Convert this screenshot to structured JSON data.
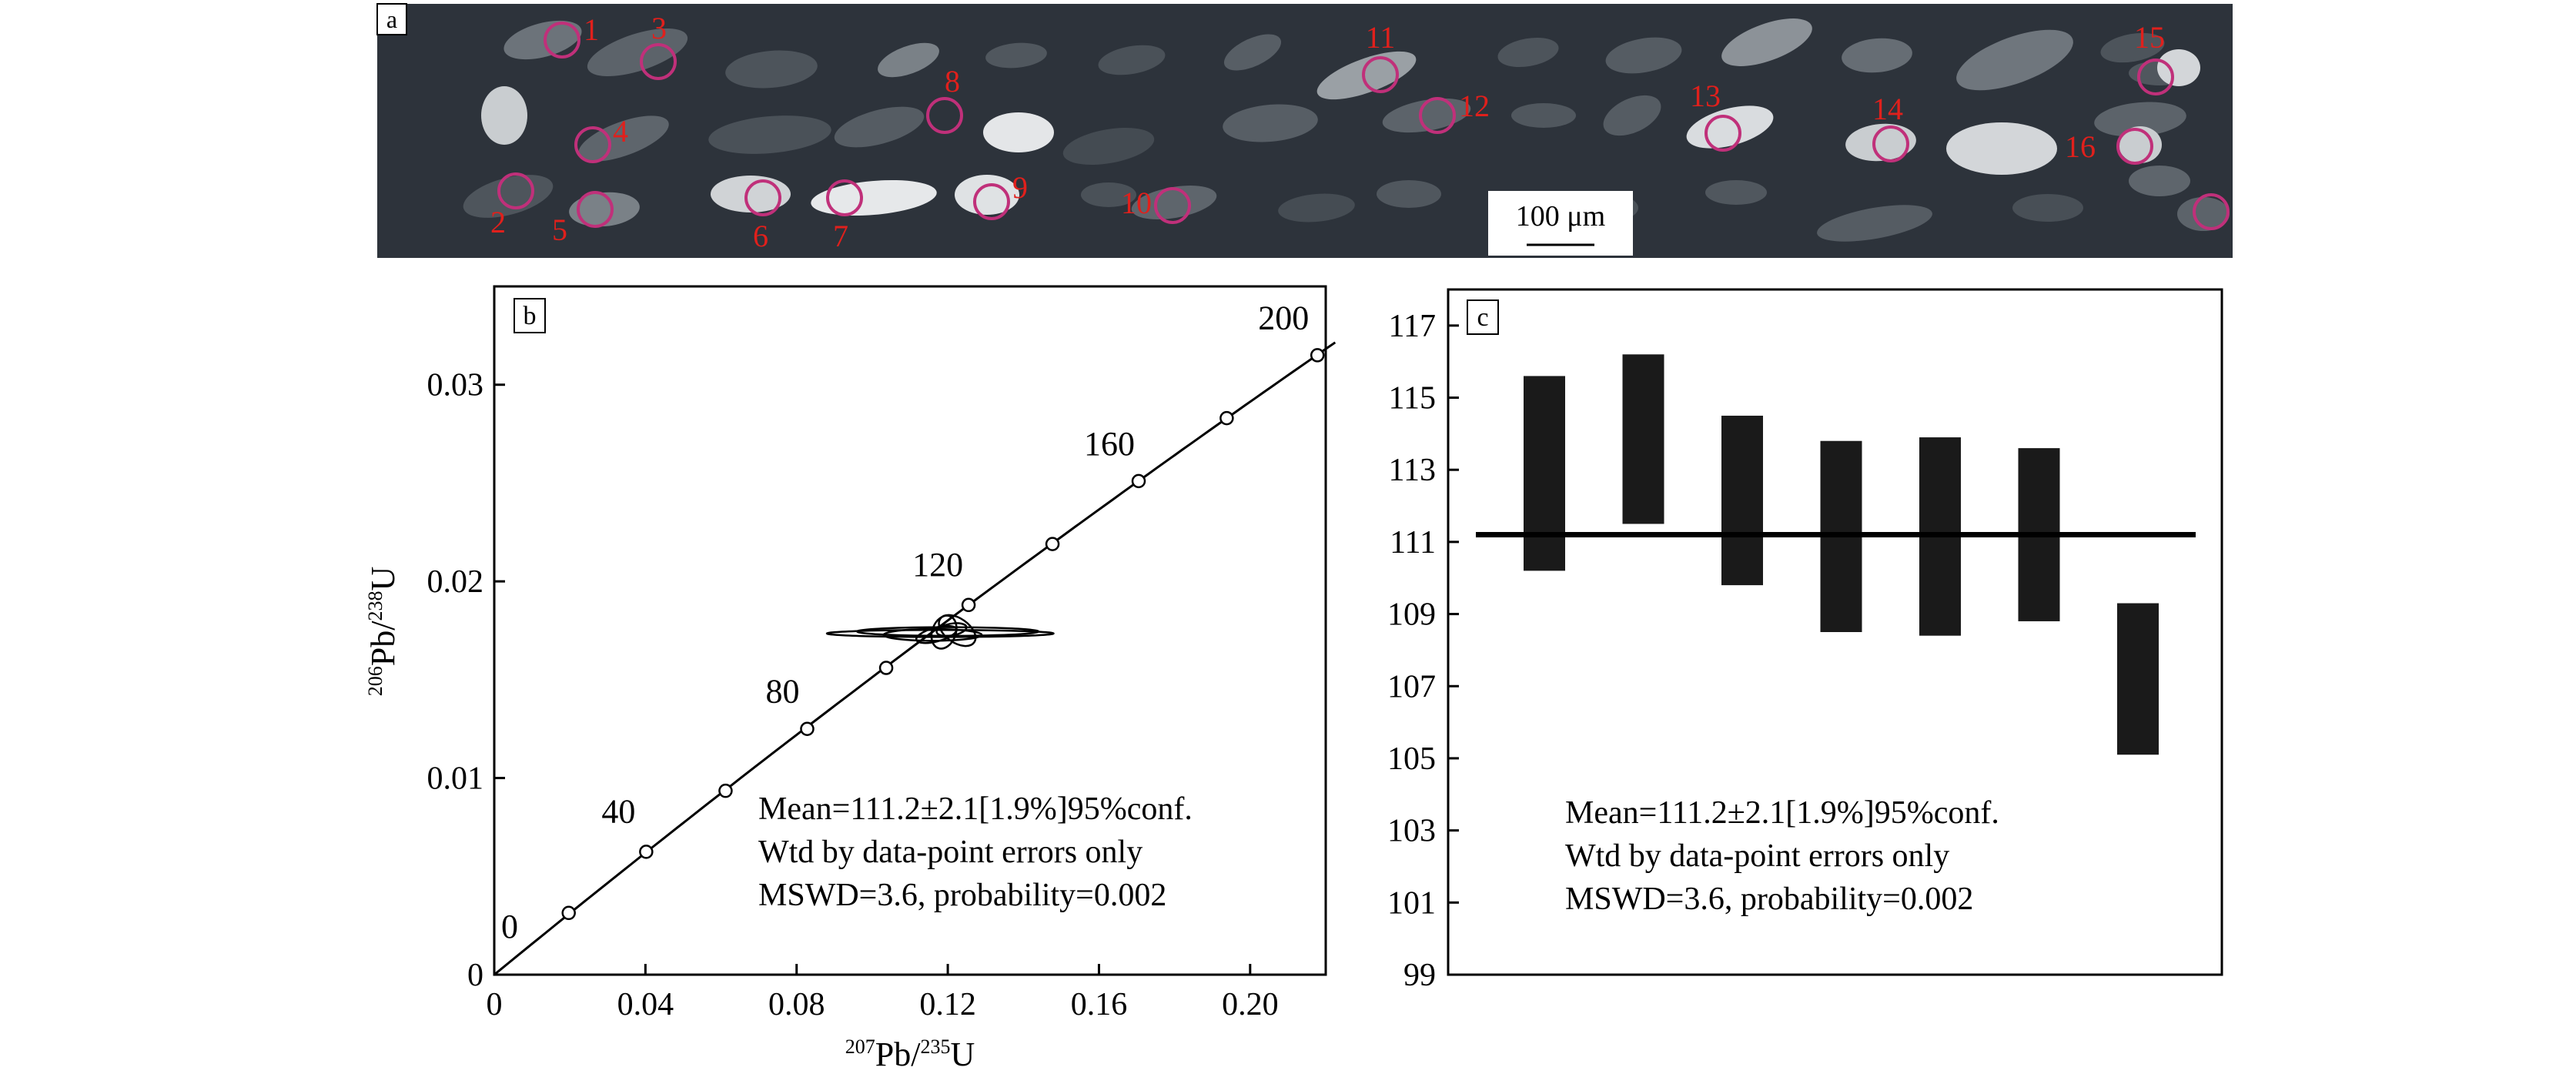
{
  "panels": {
    "a": {
      "label": "a",
      "scale_bar_label": "100 μm",
      "spot_labels": [
        "1",
        "2",
        "3",
        "4",
        "5",
        "6",
        "7",
        "8",
        "9",
        "10",
        "11",
        "12",
        "13",
        "14",
        "15",
        "16"
      ],
      "colors": {
        "background": "#2d333b",
        "spot": "#c0307a",
        "spot_label": "#e0201c"
      }
    },
    "b": {
      "label": "b",
      "xlabel": {
        "sup": "207",
        "main": "Pb/",
        "sup2": "235",
        "main2": "U"
      },
      "ylabel": {
        "sup": "206",
        "main": "Pb/",
        "sup2": "238",
        "main2": "U"
      },
      "stats": [
        "Mean=111.2±2.1[1.9%]95%conf.",
        "Wtd by data-point errors only",
        "MSWD=3.6, probability=0.002"
      ]
    },
    "c": {
      "label": "c",
      "stats": [
        "Mean=111.2±2.1[1.9%]95%conf.",
        "Wtd by data-point errors only",
        "MSWD=3.6, probability=0.002"
      ]
    }
  },
  "chart_data": [
    {
      "panel": "b",
      "type": "scatter",
      "subtype": "concordia",
      "xlim": [
        0,
        0.22
      ],
      "ylim": [
        0,
        0.035
      ],
      "xticks": [
        0,
        0.04,
        0.08,
        0.12,
        0.16,
        0.2
      ],
      "xtick_labels": [
        "0",
        "0.04",
        "0.08",
        "0.12",
        "0.16",
        "0.20"
      ],
      "yticks": [
        0,
        0.01,
        0.02,
        0.03
      ],
      "ytick_labels": [
        "0",
        "0.01",
        "0.02",
        "0.03"
      ],
      "concordia_age_markers": [
        {
          "age": 0,
          "x": 0.0,
          "y": 0.0,
          "label": "0"
        },
        {
          "age": 20,
          "x": 0.0197,
          "y": 0.00314,
          "label": ""
        },
        {
          "age": 40,
          "x": 0.0402,
          "y": 0.00625,
          "label": "40"
        },
        {
          "age": 60,
          "x": 0.0612,
          "y": 0.00935,
          "label": ""
        },
        {
          "age": 80,
          "x": 0.0828,
          "y": 0.0125,
          "label": "80"
        },
        {
          "age": 100,
          "x": 0.1037,
          "y": 0.0156,
          "label": ""
        },
        {
          "age": 120,
          "x": 0.1255,
          "y": 0.0188,
          "label": "120"
        },
        {
          "age": 140,
          "x": 0.1477,
          "y": 0.0219,
          "label": ""
        },
        {
          "age": 160,
          "x": 0.1705,
          "y": 0.0251,
          "label": "160"
        },
        {
          "age": 180,
          "x": 0.1938,
          "y": 0.0283,
          "label": ""
        },
        {
          "age": 200,
          "x": 0.2178,
          "y": 0.0315,
          "label": "200"
        }
      ],
      "error_ellipses": [
        {
          "x": 0.118,
          "y": 0.01735,
          "rx": 0.03,
          "ry": 0.00018,
          "angle": 0
        },
        {
          "x": 0.12,
          "y": 0.01745,
          "rx": 0.024,
          "ry": 0.00022,
          "angle": 0
        },
        {
          "x": 0.116,
          "y": 0.01728,
          "rx": 0.013,
          "ry": 0.0003,
          "angle": 0
        },
        {
          "x": 0.119,
          "y": 0.01742,
          "rx": 0.0045,
          "ry": 0.0006,
          "angle": 70
        },
        {
          "x": 0.1225,
          "y": 0.0175,
          "rx": 0.0032,
          "ry": 0.00105,
          "angle": 55
        },
        {
          "x": 0.117,
          "y": 0.0173,
          "rx": 0.0055,
          "ry": 0.00035,
          "angle": 15
        },
        {
          "x": 0.121,
          "y": 0.01755,
          "rx": 0.004,
          "ry": 0.0003,
          "angle": 10
        }
      ]
    },
    {
      "panel": "c",
      "type": "bar",
      "subtype": "weighted-mean",
      "ylim": [
        99,
        118
      ],
      "yticks": [
        99,
        101,
        103,
        105,
        107,
        109,
        111,
        113,
        115,
        117
      ],
      "mean": 111.2,
      "error_bars": [
        {
          "low": 110.2,
          "high": 115.6
        },
        {
          "low": 111.5,
          "high": 116.2
        },
        {
          "low": 109.8,
          "high": 114.5
        },
        {
          "low": 108.5,
          "high": 113.8
        },
        {
          "low": 108.4,
          "high": 113.9
        },
        {
          "low": 108.8,
          "high": 113.6
        },
        {
          "low": 105.1,
          "high": 109.3
        }
      ]
    }
  ]
}
